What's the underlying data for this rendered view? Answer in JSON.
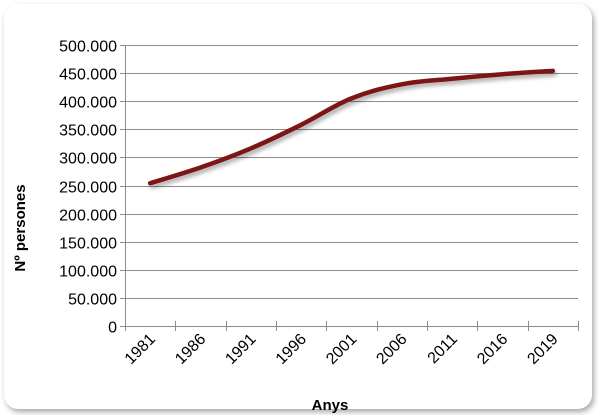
{
  "chart_data": {
    "type": "line",
    "title": "",
    "xlabel": "Anys",
    "ylabel": "Nº persones",
    "categories": [
      "1981",
      "1986",
      "1991",
      "1996",
      "2001",
      "2006",
      "2011",
      "2016",
      "2019"
    ],
    "x": [
      1981,
      1986,
      1991,
      1996,
      2001,
      2006,
      2011,
      2016,
      2019
    ],
    "series": [
      {
        "name": "",
        "values": [
          254000,
          282000,
          316000,
          358000,
          405000,
          430000,
          440000,
          448000,
          454000
        ]
      }
    ],
    "ylim": [
      0,
      500000
    ],
    "yticks": [
      {
        "value": 0,
        "label": "0"
      },
      {
        "value": 50000,
        "label": "50.000"
      },
      {
        "value": 100000,
        "label": "100.000"
      },
      {
        "value": 150000,
        "label": "150.000"
      },
      {
        "value": 200000,
        "label": "200.000"
      },
      {
        "value": 250000,
        "label": "250.000"
      },
      {
        "value": 300000,
        "label": "300.000"
      },
      {
        "value": 350000,
        "label": "350.000"
      },
      {
        "value": 400000,
        "label": "400.000"
      },
      {
        "value": 450000,
        "label": "450.000"
      },
      {
        "value": 500000,
        "label": "500.000"
      }
    ],
    "grid": true,
    "legend": "none",
    "colors": {
      "line": "#7b1515",
      "grid": "#8c8c8c",
      "axis": "#8c8c8c"
    }
  }
}
